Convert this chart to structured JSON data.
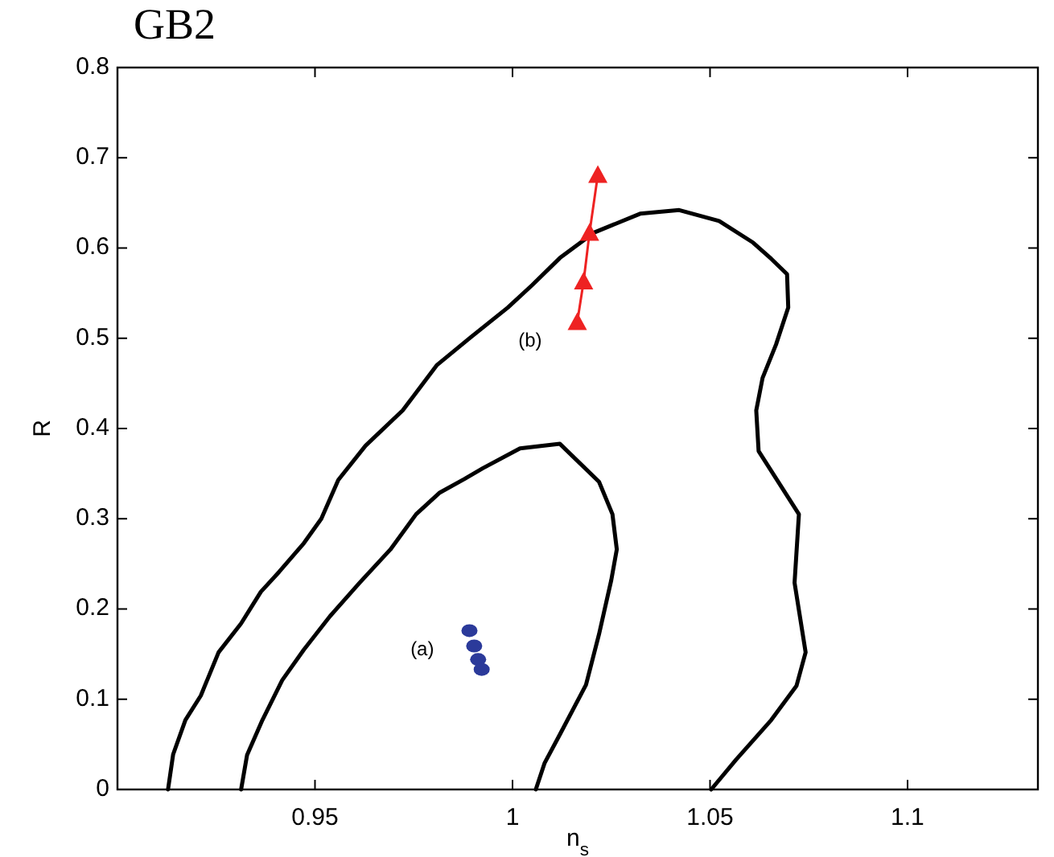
{
  "chart_data": {
    "type": "line",
    "title": "GB2",
    "xlabel": "n$_{s}$",
    "ylabel": "R",
    "xlim": [
      0.9,
      1.133
    ],
    "xticks": [
      0.95,
      1,
      1.05,
      1.1
    ],
    "ylim": [
      0,
      0.8
    ],
    "yticks": [
      0,
      0.1,
      0.2,
      0.3,
      0.4,
      0.5,
      0.6,
      0.7,
      0.8
    ],
    "grid": false,
    "legend": false,
    "series": [
      {
        "color": "#000000",
        "marker": "none",
        "line_style": "solid",
        "x": [
          0.9128,
          0.9141,
          0.9172,
          0.9211,
          0.9256,
          0.9313,
          0.9363,
          0.9409,
          0.9472,
          0.9516,
          0.9559,
          0.9628,
          0.9722,
          0.9808,
          0.9894,
          0.9988,
          1.005,
          1.012,
          1.0206,
          1.0323,
          1.0422,
          1.0523,
          1.0609,
          1.0655,
          1.0695,
          1.0698,
          1.0667,
          1.0633,
          1.0617,
          1.0623,
          1.0725,
          1.0714,
          1.0742,
          1.0719,
          1.0655,
          1.0566,
          1.0503
        ],
        "values": [
          0,
          0.039,
          0.077,
          0.104,
          0.152,
          0.184,
          0.219,
          0.241,
          0.273,
          0.3,
          0.343,
          0.381,
          0.42,
          0.47,
          0.501,
          0.534,
          0.559,
          0.589,
          0.617,
          0.638,
          0.642,
          0.63,
          0.606,
          0.588,
          0.571,
          0.534,
          0.493,
          0.456,
          0.42,
          0.375,
          0.305,
          0.229,
          0.152,
          0.115,
          0.077,
          0.033,
          0
        ]
      },
      {
        "color": "#000000",
        "marker": "none",
        "line_style": "solid",
        "x": [
          0.9313,
          0.9328,
          0.9367,
          0.9417,
          0.9472,
          0.9538,
          0.9613,
          0.9691,
          0.9756,
          0.9816,
          0.9878,
          0.9925,
          1.0019,
          1.012,
          1.0219,
          1.0253,
          1.0264,
          1.025,
          1.0219,
          1.0186,
          1.012,
          1.0081,
          1.0059
        ],
        "values": [
          0,
          0.038,
          0.077,
          0.121,
          0.155,
          0.192,
          0.229,
          0.266,
          0.305,
          0.329,
          0.344,
          0.356,
          0.378,
          0.383,
          0.341,
          0.305,
          0.266,
          0.232,
          0.172,
          0.116,
          0.061,
          0.029,
          0
        ]
      },
      {
        "type": "line",
        "name": "(b)",
        "color": "#ee2222",
        "marker": "triangle",
        "line_style": "solid",
        "x": [
          1.0164,
          1.018,
          1.0195,
          1.0216
        ],
        "values": [
          0.518,
          0.563,
          0.617,
          0.681
        ]
      },
      {
        "type": "scatter",
        "name": "(a)",
        "color": "#2b3a9a",
        "marker": "circle",
        "x": [
          0.9891,
          0.9903,
          0.9913,
          0.9922
        ],
        "values": [
          0.176,
          0.159,
          0.144,
          0.133
        ]
      }
    ]
  }
}
